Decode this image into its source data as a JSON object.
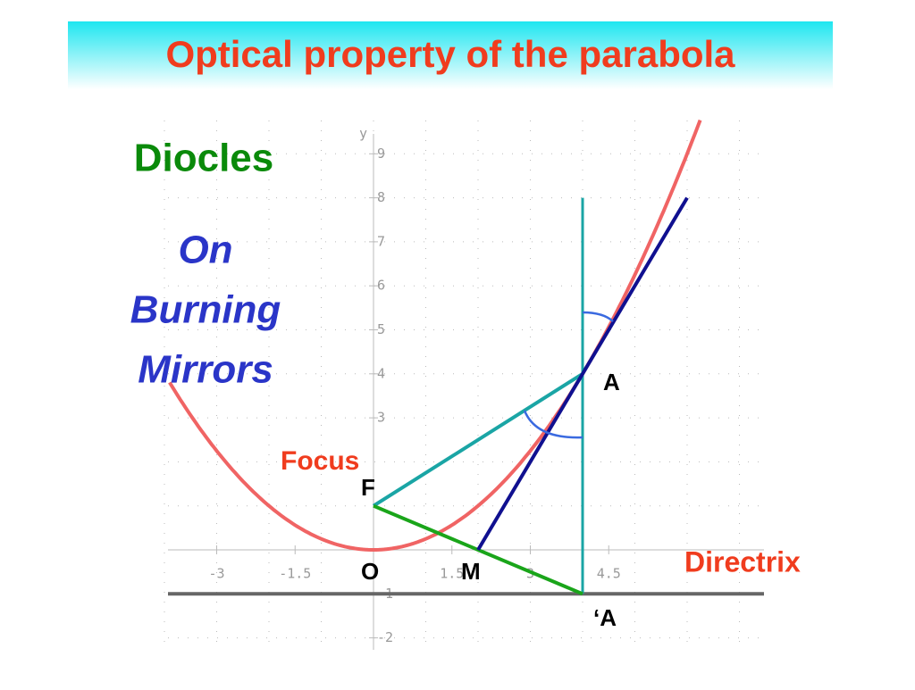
{
  "header": {
    "title": "Optical property of the parabola"
  },
  "sidebar": {
    "author": "Diocles",
    "work": [
      "On",
      "Burning",
      "Mirrors"
    ]
  },
  "plot": {
    "axis_label": "y",
    "xticks": [
      -3,
      -1.5,
      1.5,
      3,
      4.5
    ],
    "yticks": [
      9,
      8,
      7,
      6,
      5,
      4,
      3,
      -1,
      -2
    ],
    "labels": {
      "focus": "Focus",
      "f": "F",
      "o": "O",
      "m": "M",
      "a": "A",
      "a_prime": "‘A",
      "directrix": "Directrix"
    }
  }
}
